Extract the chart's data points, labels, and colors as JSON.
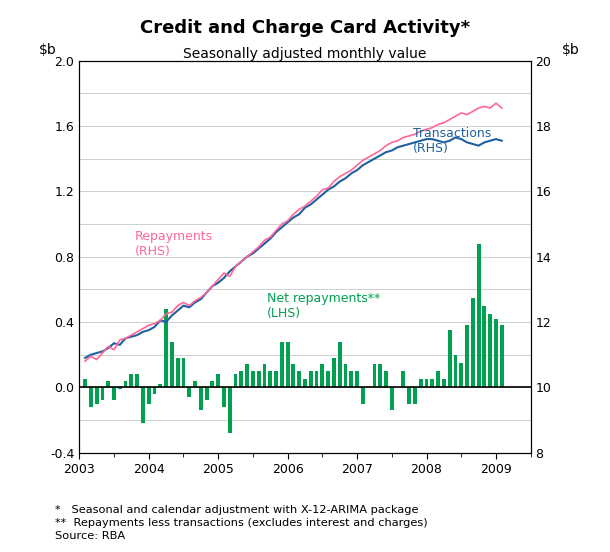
{
  "title": "Credit and Charge Card Activity*",
  "subtitle": "Seasonally adjusted monthly value",
  "ylim_left": [
    -0.4,
    2.0
  ],
  "ylim_right": [
    8,
    20
  ],
  "yticks_left": [
    -0.4,
    0.0,
    0.4,
    0.8,
    1.2,
    1.6,
    2.0
  ],
  "yticks_right": [
    8,
    10,
    12,
    14,
    16,
    18,
    20
  ],
  "xlim": [
    2003.0,
    2009.5
  ],
  "xtick_positions": [
    2003,
    2004,
    2005,
    2006,
    2007,
    2008,
    2009
  ],
  "xtick_labels": [
    "2003",
    "2004",
    "2005",
    "2006",
    "2007",
    "2008",
    "2009"
  ],
  "footnote1": "*   Seasonal and calendar adjustment with X-12-ARIMA package",
  "footnote2": "**  Repayments less transactions (excludes interest and charges)",
  "footnote3": "Source: RBA",
  "transactions_color": "#2060a0",
  "repayments_color": "#ff6699",
  "net_repayments_color": "#00a050",
  "background_color": "#ffffff",
  "grid_color": "#c8c8c8",
  "transactions_label": "Transactions\n(RHS)",
  "repayments_label": "Repayments\n(RHS)",
  "net_repayments_label": "Net repayments**\n(LHS)",
  "transactions_rhs": [
    10.9,
    11.0,
    11.05,
    11.1,
    11.2,
    11.35,
    11.3,
    11.5,
    11.55,
    11.6,
    11.7,
    11.75,
    11.85,
    12.05,
    12.0,
    12.2,
    12.35,
    12.5,
    12.45,
    12.6,
    12.7,
    12.9,
    13.1,
    13.2,
    13.35,
    13.55,
    13.7,
    13.85,
    14.0,
    14.1,
    14.25,
    14.4,
    14.55,
    14.75,
    14.9,
    15.05,
    15.2,
    15.3,
    15.5,
    15.6,
    15.75,
    15.9,
    16.05,
    16.15,
    16.3,
    16.4,
    16.55,
    16.65,
    16.8,
    16.9,
    17.0,
    17.1,
    17.2,
    17.25,
    17.35,
    17.4,
    17.45,
    17.5,
    17.55,
    17.6,
    17.6,
    17.55,
    17.5,
    17.55,
    17.65,
    17.6,
    17.5,
    17.45,
    17.4,
    17.5,
    17.55,
    17.6,
    17.55
  ],
  "repayments_rhs": [
    10.8,
    10.95,
    10.85,
    11.05,
    11.25,
    11.15,
    11.45,
    11.5,
    11.6,
    11.7,
    11.8,
    11.9,
    11.95,
    12.05,
    12.25,
    12.3,
    12.5,
    12.6,
    12.5,
    12.65,
    12.75,
    12.9,
    13.1,
    13.3,
    13.5,
    13.4,
    13.7,
    13.85,
    14.0,
    14.15,
    14.3,
    14.5,
    14.6,
    14.8,
    15.0,
    15.1,
    15.3,
    15.45,
    15.55,
    15.7,
    15.85,
    16.05,
    16.1,
    16.3,
    16.45,
    16.55,
    16.65,
    16.8,
    16.95,
    17.05,
    17.15,
    17.25,
    17.4,
    17.5,
    17.55,
    17.65,
    17.7,
    17.75,
    17.85,
    17.9,
    17.95,
    18.05,
    18.1,
    18.2,
    18.3,
    18.4,
    18.35,
    18.45,
    18.55,
    18.6,
    18.55,
    18.7,
    18.55
  ],
  "net_repayments_lhs": [
    0.05,
    -0.12,
    -0.1,
    -0.08,
    0.04,
    -0.08,
    -0.01,
    0.04,
    0.08,
    0.08,
    -0.22,
    -0.1,
    -0.04,
    0.02,
    0.48,
    0.28,
    0.18,
    0.18,
    -0.06,
    0.04,
    -0.14,
    -0.08,
    0.04,
    0.08,
    -0.12,
    -0.28,
    0.08,
    0.1,
    0.14,
    0.1,
    0.1,
    0.14,
    0.1,
    0.1,
    0.28,
    0.28,
    0.14,
    0.1,
    0.05,
    0.1,
    0.1,
    0.14,
    0.1,
    0.18,
    0.28,
    0.14,
    0.1,
    0.1,
    -0.1,
    0.0,
    0.14,
    0.14,
    0.1,
    -0.14,
    0.0,
    0.1,
    -0.1,
    -0.1,
    0.05,
    0.05,
    0.05,
    0.1,
    0.05,
    0.35,
    0.2,
    0.15,
    0.38,
    0.55,
    0.88,
    0.5,
    0.45,
    0.42,
    0.38
  ],
  "n_months": 73,
  "start_year_decimal": 2003.083
}
